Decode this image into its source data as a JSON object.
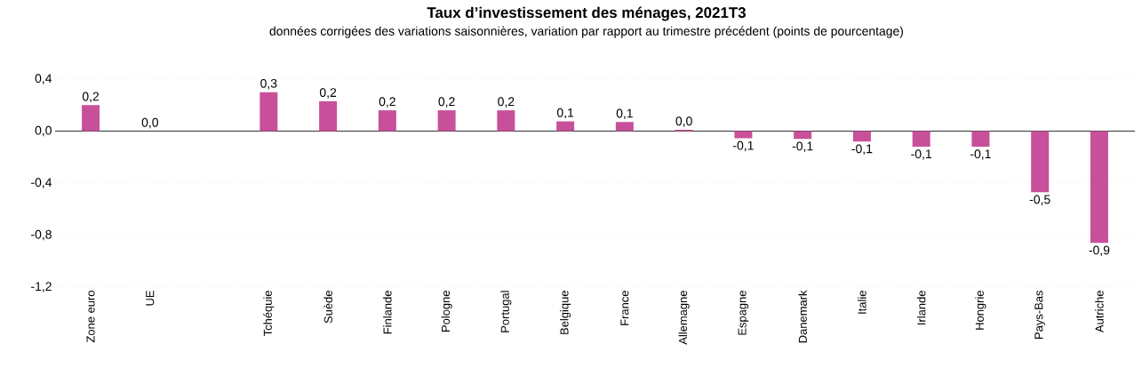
{
  "chart_data": {
    "type": "bar",
    "title": "Taux d’investissement des ménages, 2021T3",
    "subtitle": "données corrigées des variations saisonnières, variation par rapport au trimestre précédent (points de pourcentage)",
    "categories": [
      "Zone euro",
      "UE",
      null,
      "Tchéquie",
      "Suède",
      "Finlande",
      "Pologne",
      "Portugal",
      "Belgique",
      "France",
      "Allemagne",
      "Espagne",
      "Danemark",
      "Italie",
      "Irlande",
      "Hongrie",
      "Pays-Bas",
      "Autriche"
    ],
    "values": [
      0.2,
      0.0,
      null,
      0.3,
      0.23,
      0.16,
      0.16,
      0.16,
      0.075,
      0.07,
      0.01,
      -0.055,
      -0.06,
      -0.08,
      -0.12,
      -0.12,
      -0.47,
      -0.86
    ],
    "value_labels": [
      "0,2",
      "0,0",
      null,
      "0,3",
      "0,2",
      "0,2",
      "0,2",
      "0,2",
      "0,1",
      "0,1",
      "0,0",
      "-0,1",
      "-0,1",
      "-0,1",
      "-0,1",
      "-0,1",
      "-0,5",
      "-0,9"
    ],
    "color": "#c8509a",
    "ylim": [
      -1.2,
      0.4
    ],
    "yticks": [
      {
        "value": -1.2,
        "label": "-1,2"
      },
      {
        "value": -0.8,
        "label": "-0,8"
      },
      {
        "value": -0.4,
        "label": "-0,4"
      },
      {
        "value": 0.0,
        "label": "0,0"
      },
      {
        "value": 0.4,
        "label": "0,4"
      }
    ],
    "grid": "y"
  }
}
